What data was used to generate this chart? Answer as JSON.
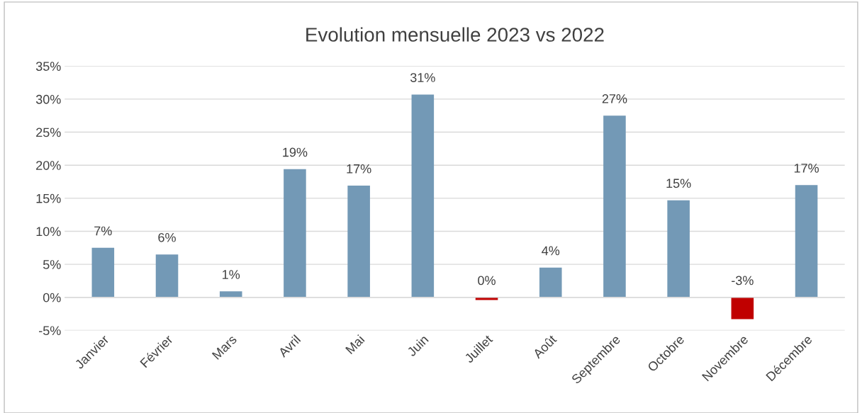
{
  "chart_data": {
    "type": "bar",
    "title": "Evolution mensuelle 2023 vs 2022",
    "categories": [
      "Janvier",
      "Février",
      "Mars",
      "Avril",
      "Mai",
      "Juin",
      "Juillet",
      "Août",
      "Septembre",
      "Octobre",
      "Novembre",
      "Décembre"
    ],
    "values": [
      7.5,
      6.5,
      0.9,
      19.4,
      16.9,
      30.7,
      -0.4,
      4.5,
      27.5,
      14.7,
      -3.3,
      17.0
    ],
    "colors": [
      "#7399b6",
      "#7399b6",
      "#7399b6",
      "#7399b6",
      "#7399b6",
      "#7399b6",
      "#c00000",
      "#7399b6",
      "#7399b6",
      "#7399b6",
      "#c00000",
      "#7399b6"
    ],
    "value_labels": [
      "7%",
      "6%",
      "1%",
      "19%",
      "17%",
      "31%",
      "0%",
      "4%",
      "27%",
      "15%",
      "-3%",
      "17%"
    ],
    "ylim": [
      -5,
      35
    ],
    "yticks": [
      {
        "value": -5,
        "label": "-5%"
      },
      {
        "value": 0,
        "label": "0%"
      },
      {
        "value": 5,
        "label": "5%"
      },
      {
        "value": 10,
        "label": "10%"
      },
      {
        "value": 15,
        "label": "15%"
      },
      {
        "value": 20,
        "label": "20%"
      },
      {
        "value": 25,
        "label": "25%"
      },
      {
        "value": 30,
        "label": "30%"
      },
      {
        "value": 35,
        "label": "35%"
      }
    ],
    "grid": "y",
    "legend": false
  }
}
